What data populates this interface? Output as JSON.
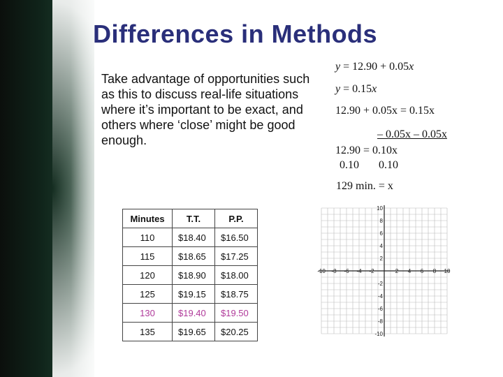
{
  "title": "Differences in Methods",
  "intro": "Take advantage of opportunities such as this to discuss real-life situations where it’s important to be exact, and others where ‘close’ might be good enough.",
  "equations": {
    "eq1": "= 12.90 + 0.05",
    "eq2": "= 0.15",
    "eq3": "12.90 + 0.05x = 0.15x",
    "eq4": "– 0.05x  – 0.05x",
    "eq5": "12.90 = 0.10x",
    "eq6": "0.10       0.10",
    "eq7": "129 min. = x"
  },
  "table": {
    "headers": [
      "Minutes",
      "T.T.",
      "P.P."
    ],
    "rows": [
      [
        "110",
        "$18.40",
        "$16.50"
      ],
      [
        "115",
        "$18.65",
        "$17.25"
      ],
      [
        "120",
        "$18.90",
        "$18.00"
      ],
      [
        "125",
        "$19.15",
        "$18.75"
      ],
      [
        "130",
        "$19.40",
        "$19.50"
      ],
      [
        "135",
        "$19.65",
        "$20.25"
      ]
    ],
    "highlight_row": 4,
    "highlight_color": "#b03a9a"
  },
  "graph": {
    "x_ticks": [
      "-10",
      "-8",
      "-6",
      "-4",
      "-2",
      "2",
      "4",
      "6",
      "8",
      "10"
    ],
    "y_ticks": [
      "10",
      "8",
      "6",
      "4",
      "2",
      "-2",
      "-4",
      "-6",
      "-8",
      "-10"
    ]
  },
  "colors": {
    "title": "#2a2f7a",
    "chalkboard": "#10251b"
  }
}
